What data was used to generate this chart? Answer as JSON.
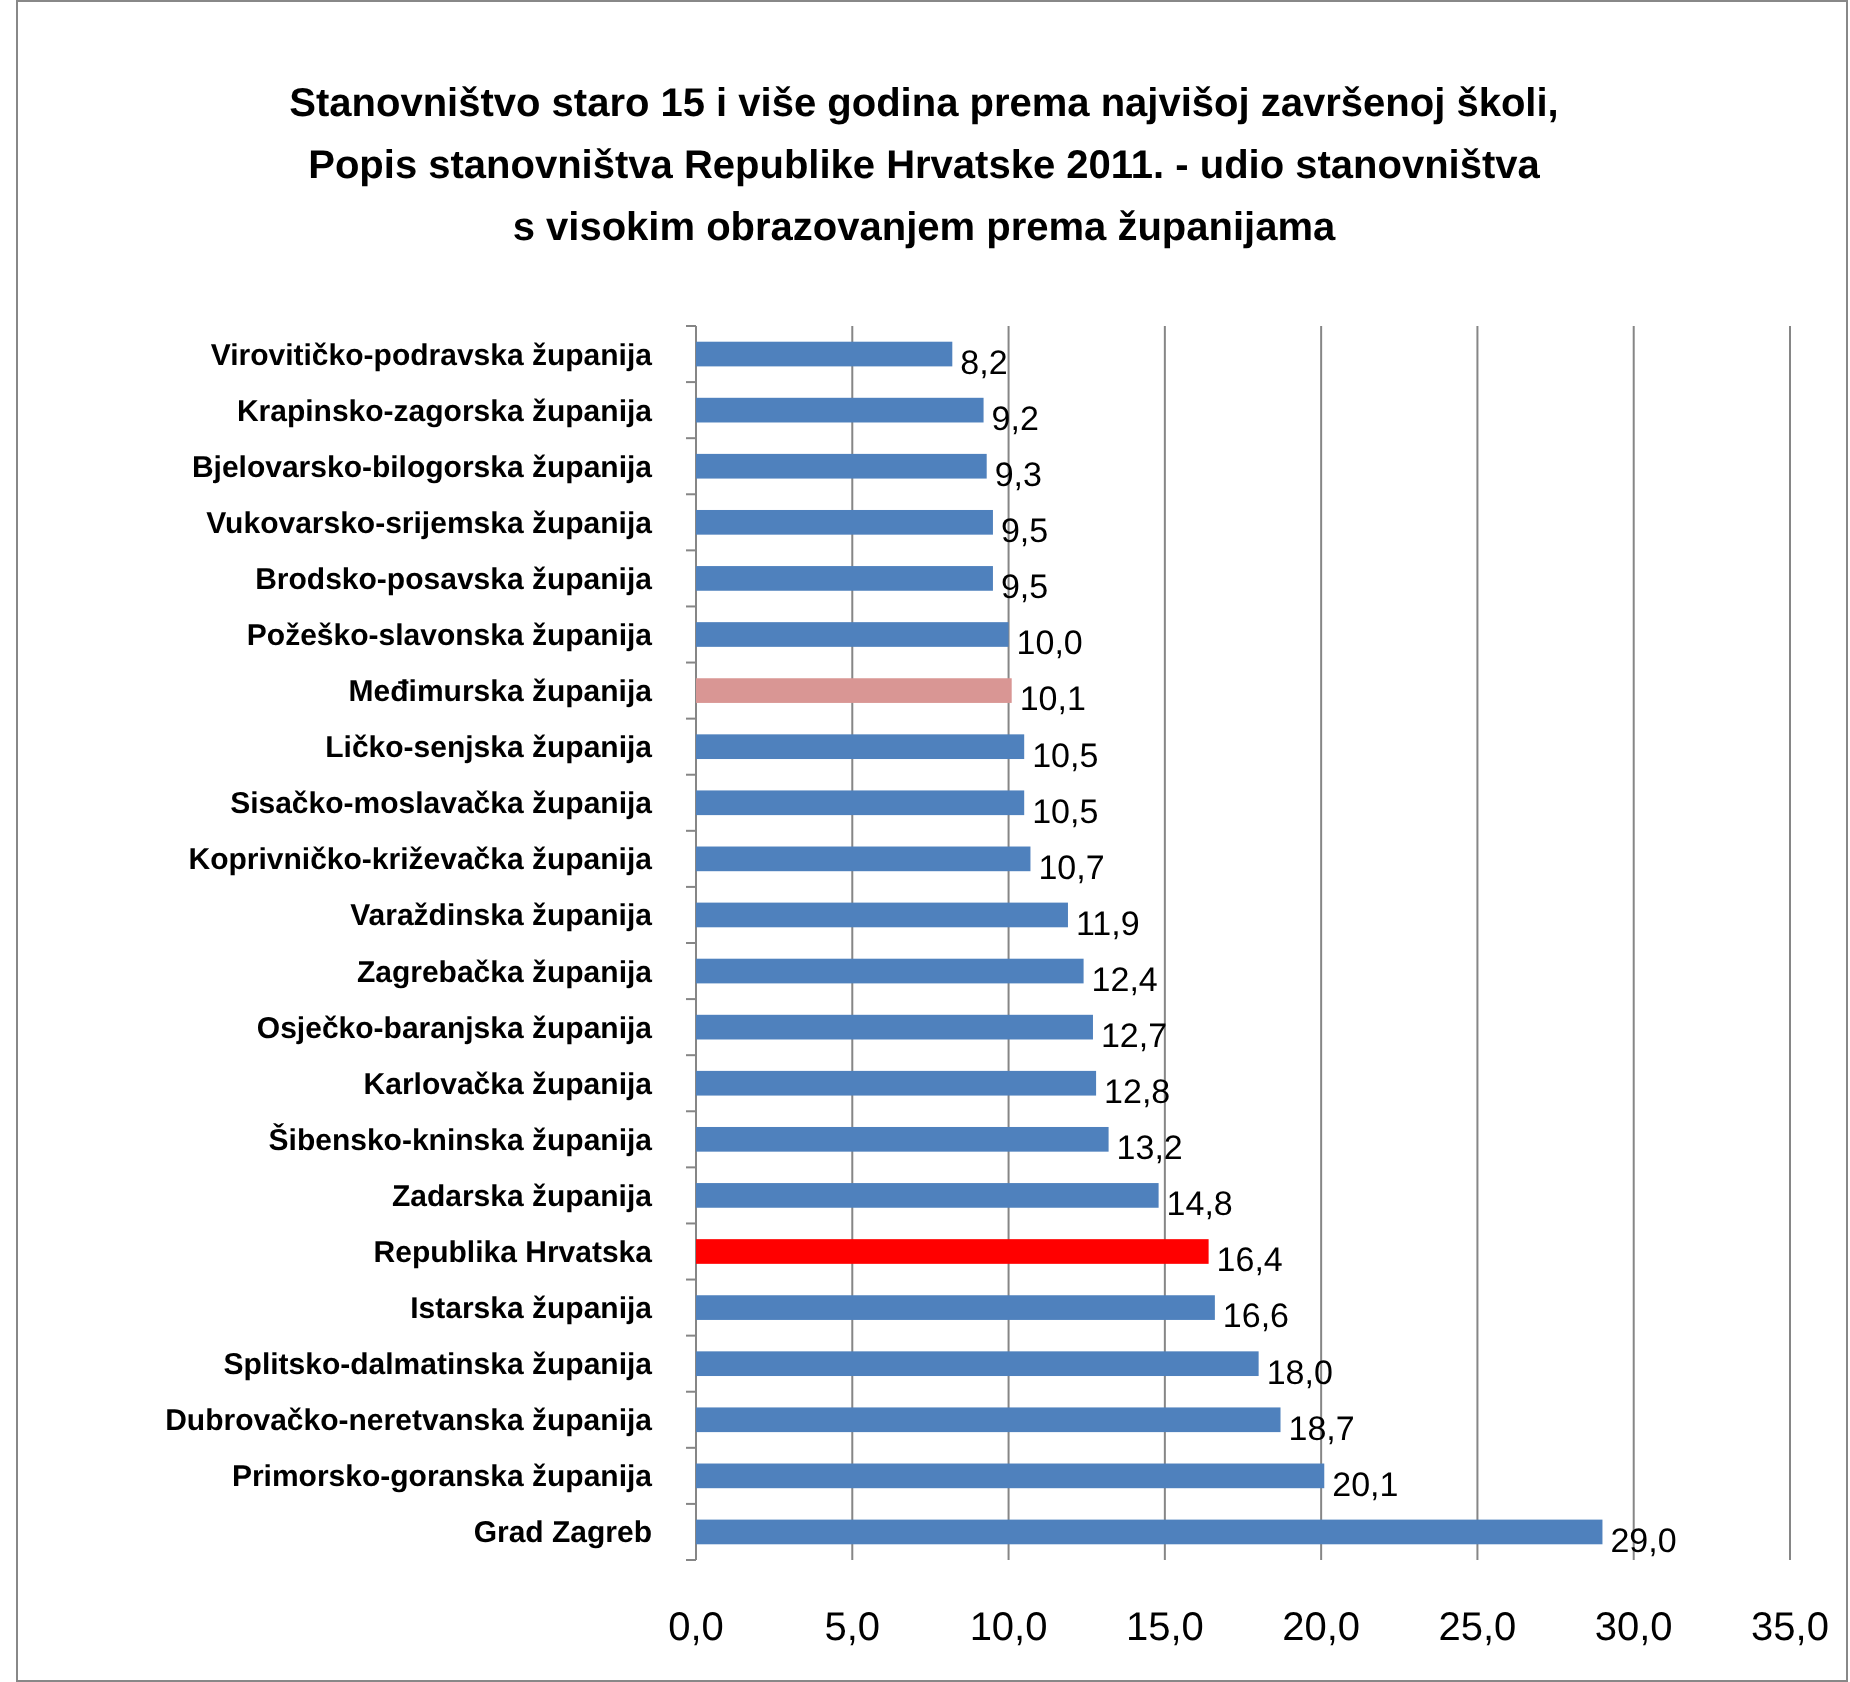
{
  "chart_data": {
    "type": "bar",
    "orientation": "horizontal",
    "title": "Stanovništvo staro 15 i više godina prema najvišoj završenoj školi,\nPopis stanovništva Republike Hrvatske 2011. - udio stanovništva\ns visokim obrazovanjem prema županijama",
    "categories": [
      "Virovitičko-podravska županija",
      "Krapinsko-zagorska županija",
      "Bjelovarsko-bilogorska županija",
      "Vukovarsko-srijemska županija",
      "Brodsko-posavska županija",
      "Požeško-slavonska županija",
      "Međimurska županija",
      "Ličko-senjska županija",
      "Sisačko-moslavačka županija",
      "Koprivničko-križevačka županija",
      "Varaždinska županija",
      "Zagrebačka županija",
      "Osječko-baranjska županija",
      "Karlovačka županija",
      "Šibensko-kninska županija",
      "Zadarska županija",
      "Republika Hrvatska",
      "Istarska županija",
      "Splitsko-dalmatinska županija",
      "Dubrovačko-neretvanska županija",
      "Primorsko-goranska županija",
      "Grad Zagreb"
    ],
    "values": [
      8.2,
      9.2,
      9.3,
      9.5,
      9.5,
      10.0,
      10.1,
      10.5,
      10.5,
      10.7,
      11.9,
      12.4,
      12.7,
      12.8,
      13.2,
      14.8,
      16.4,
      16.6,
      18.0,
      18.7,
      20.1,
      29.0
    ],
    "value_labels": [
      "8,2",
      "9,2",
      "9,3",
      "9,5",
      "9,5",
      "10,0",
      "10,1",
      "10,5",
      "10,5",
      "10,7",
      "11,9",
      "12,4",
      "12,7",
      "12,8",
      "13,2",
      "14,8",
      "16,4",
      "16,6",
      "18,0",
      "18,7",
      "20,1",
      "29,0"
    ],
    "colors": [
      "#4f81bd",
      "#4f81bd",
      "#4f81bd",
      "#4f81bd",
      "#4f81bd",
      "#4f81bd",
      "#d99694",
      "#4f81bd",
      "#4f81bd",
      "#4f81bd",
      "#4f81bd",
      "#4f81bd",
      "#4f81bd",
      "#4f81bd",
      "#4f81bd",
      "#4f81bd",
      "#ff0000",
      "#4f81bd",
      "#4f81bd",
      "#4f81bd",
      "#4f81bd",
      "#4f81bd"
    ],
    "xlim": [
      0,
      35
    ],
    "xticks": [
      {
        "value": 0,
        "label": "0,0"
      },
      {
        "value": 5,
        "label": "5,0"
      },
      {
        "value": 10,
        "label": "10,0"
      },
      {
        "value": 15,
        "label": "15,0"
      },
      {
        "value": 20,
        "label": "20,0"
      },
      {
        "value": 25,
        "label": "25,0"
      },
      {
        "value": 30,
        "label": "30,0"
      },
      {
        "value": 35,
        "label": "35,0"
      }
    ],
    "grid": "x"
  }
}
